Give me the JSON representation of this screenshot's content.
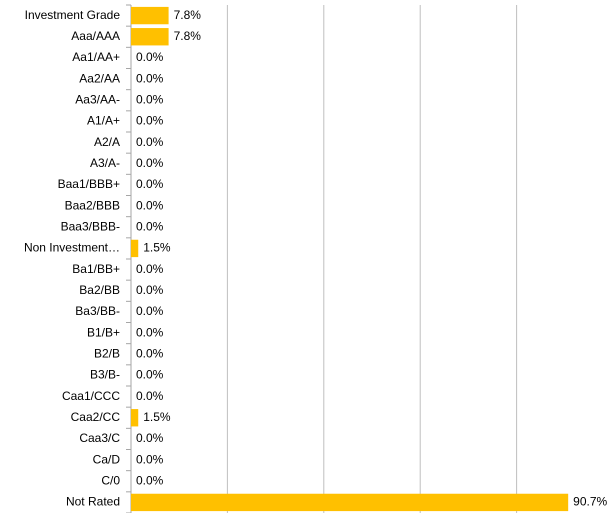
{
  "chart_data": {
    "type": "bar",
    "orientation": "horizontal",
    "categories": [
      "Investment Grade",
      "Aaa/AAA",
      "Aa1/AA+",
      "Aa2/AA",
      "Aa3/AA-",
      "A1/A+",
      "A2/A",
      "A3/A-",
      "Baa1/BBB+",
      "Baa2/BBB",
      "Baa3/BBB-",
      "Non Investment…",
      "Ba1/BB+",
      "Ba2/BB",
      "Ba3/BB-",
      "B1/B+",
      "B2/B",
      "B3/B-",
      "Caa1/CCC",
      "Caa2/CC",
      "Caa3/C",
      "Ca/D",
      "C/0",
      "Not Rated"
    ],
    "values": [
      7.8,
      7.8,
      0,
      0,
      0,
      0,
      0,
      0,
      0,
      0,
      0,
      1.5,
      0,
      0,
      0,
      0,
      0,
      0,
      0,
      1.5,
      0,
      0,
      0,
      90.7
    ],
    "value_labels": [
      "7.8%",
      "7.8%",
      "0.0%",
      "0.0%",
      "0.0%",
      "0.0%",
      "0.0%",
      "0.0%",
      "0.0%",
      "0.0%",
      "0.0%",
      "1.5%",
      "0.0%",
      "0.0%",
      "0.0%",
      "0.0%",
      "0.0%",
      "0.0%",
      "0.0%",
      "1.5%",
      "0.0%",
      "0.0%",
      "0.0%",
      "90.7%"
    ],
    "color": "#ffc000",
    "xlim": [
      0,
      100
    ],
    "xticks": [
      0,
      20,
      40,
      60,
      80,
      100
    ],
    "grid": true
  }
}
